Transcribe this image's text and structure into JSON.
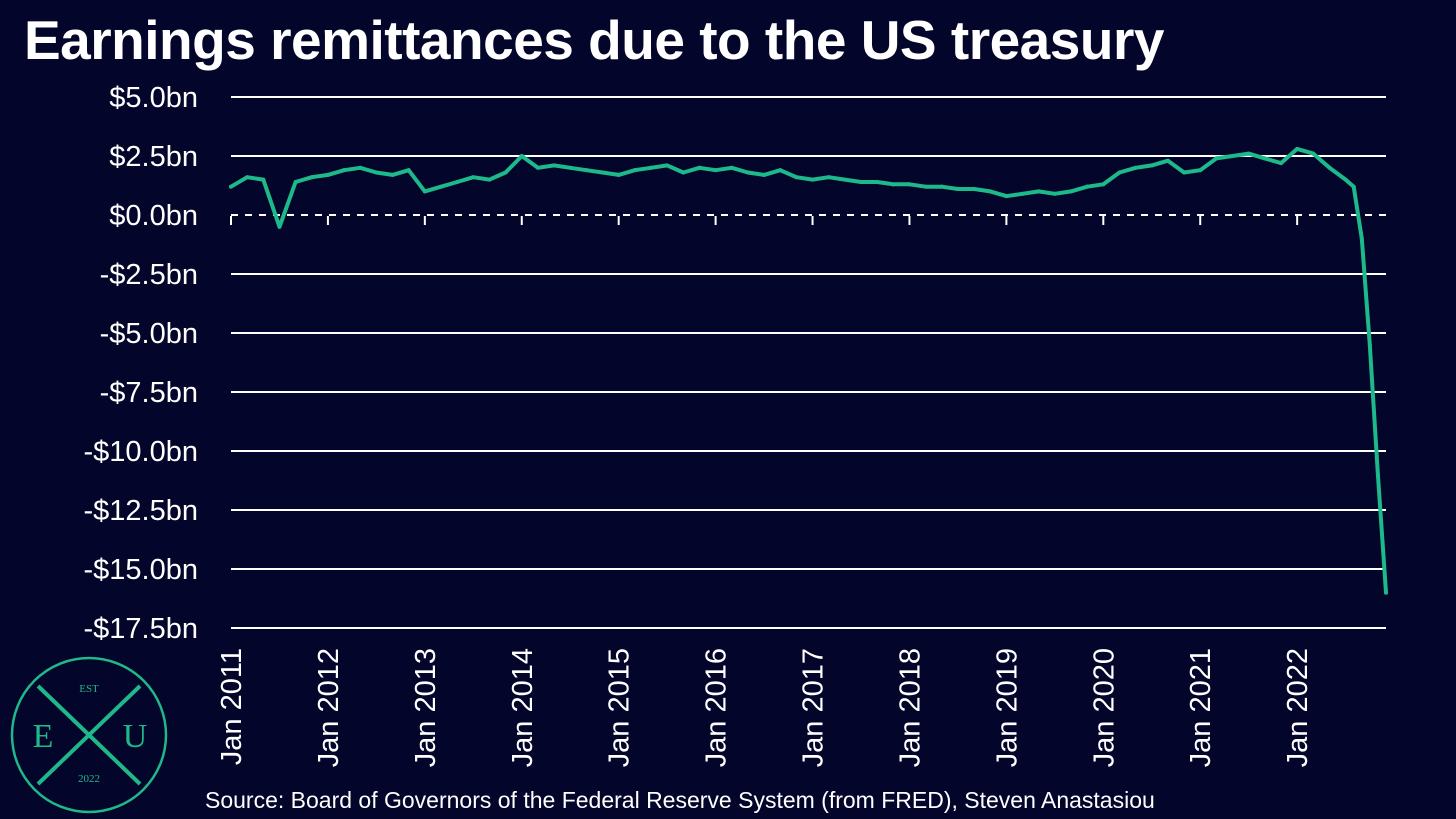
{
  "title": "Earnings remittances due to the US treasury",
  "source": "Source: Board of Governors of the Federal Reserve System (from FRED), Steven Anastasiou",
  "logo": {
    "top": "EST",
    "left": "E",
    "center": "X",
    "right": "U",
    "bottom": "2022",
    "color": "#1fb88a"
  },
  "colors": {
    "background": "#03052a",
    "line": "#1db98a",
    "grid": "#ffffff",
    "text": "#ffffff"
  },
  "chart_data": {
    "type": "line",
    "title": "Earnings remittances due to the US treasury",
    "xlabel": "",
    "ylabel": "",
    "ylim": [
      -17.5,
      5.0
    ],
    "y_ticks": [
      5.0,
      2.5,
      0.0,
      -2.5,
      -5.0,
      -7.5,
      -10.0,
      -12.5,
      -15.0,
      -17.5
    ],
    "y_tick_labels": [
      "$5.0bn",
      "$2.5bn",
      "$0.0bn",
      "-$2.5bn",
      "-$5.0bn",
      "-$7.5bn",
      "-$10.0bn",
      "-$12.5bn",
      "-$15.0bn",
      "-$17.5bn"
    ],
    "x_ticks": [
      "2011-01",
      "2012-01",
      "2013-01",
      "2014-01",
      "2015-01",
      "2016-01",
      "2017-01",
      "2018-01",
      "2019-01",
      "2020-01",
      "2021-01",
      "2022-01"
    ],
    "x_tick_labels": [
      "Jan 2011",
      "Jan 2012",
      "Jan 2013",
      "Jan 2014",
      "Jan 2015",
      "Jan 2016",
      "Jan 2017",
      "Jan 2018",
      "Jan 2019",
      "Jan 2020",
      "Jan 2021",
      "Jan 2022"
    ],
    "xlim": [
      "2011-01",
      "2022-12"
    ],
    "grid": true,
    "zero_line": "dashed",
    "series": [
      {
        "x": [
          "2011-01",
          "2011-03",
          "2011-05",
          "2011-07",
          "2011-09",
          "2011-11",
          "2012-01",
          "2012-03",
          "2012-05",
          "2012-07",
          "2012-09",
          "2012-11",
          "2013-01",
          "2013-03",
          "2013-05",
          "2013-07",
          "2013-09",
          "2013-11",
          "2014-01",
          "2014-03",
          "2014-05",
          "2014-07",
          "2014-09",
          "2014-11",
          "2015-01",
          "2015-03",
          "2015-05",
          "2015-07",
          "2015-09",
          "2015-11",
          "2016-01",
          "2016-03",
          "2016-05",
          "2016-07",
          "2016-09",
          "2016-11",
          "2017-01",
          "2017-03",
          "2017-05",
          "2017-07",
          "2017-09",
          "2017-11",
          "2018-01",
          "2018-03",
          "2018-05",
          "2018-07",
          "2018-09",
          "2018-11",
          "2019-01",
          "2019-03",
          "2019-05",
          "2019-07",
          "2019-09",
          "2019-11",
          "2020-01",
          "2020-03",
          "2020-05",
          "2020-07",
          "2020-09",
          "2020-11",
          "2021-01",
          "2021-03",
          "2021-05",
          "2021-07",
          "2021-09",
          "2021-11",
          "2022-01",
          "2022-03",
          "2022-05",
          "2022-07",
          "2022-08",
          "2022-09",
          "2022-10",
          "2022-11",
          "2022-12"
        ],
        "values": [
          1.2,
          1.6,
          1.5,
          -0.5,
          1.4,
          1.6,
          1.7,
          1.9,
          2.0,
          1.8,
          1.7,
          1.9,
          1.0,
          1.2,
          1.4,
          1.6,
          1.5,
          1.8,
          2.5,
          2.0,
          2.1,
          2.0,
          1.9,
          1.8,
          1.7,
          1.9,
          2.0,
          2.1,
          1.8,
          2.0,
          1.9,
          2.0,
          1.8,
          1.7,
          1.9,
          1.6,
          1.5,
          1.6,
          1.5,
          1.4,
          1.4,
          1.3,
          1.3,
          1.2,
          1.2,
          1.1,
          1.1,
          1.0,
          0.8,
          0.9,
          1.0,
          0.9,
          1.0,
          1.2,
          1.3,
          1.8,
          2.0,
          2.1,
          2.3,
          1.8,
          1.9,
          2.4,
          2.5,
          2.6,
          2.4,
          2.2,
          2.8,
          2.6,
          2.0,
          1.5,
          1.2,
          -1.0,
          -5.5,
          -11.0,
          -16.0
        ]
      }
    ]
  }
}
